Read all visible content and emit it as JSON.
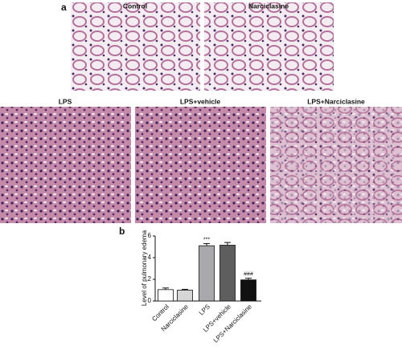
{
  "panel_a": {
    "label": "a",
    "images": [
      "Control",
      "Narciclasine",
      "LPS",
      "LPS+vehicle",
      "LPS+Narciclasine"
    ]
  },
  "panel_b_label": "b",
  "chart_data": {
    "type": "bar",
    "y_label": "Level of pulmonary edema",
    "categories": [
      "Control",
      "Narciclasine",
      "LPS",
      "LPS+vehicle",
      "LPS+Narciclasine"
    ],
    "values": [
      1.05,
      1.0,
      5.1,
      5.15,
      1.95
    ],
    "errors": [
      0.15,
      0.08,
      0.2,
      0.25,
      0.15
    ],
    "colors": [
      "#ffffff",
      "#d6d6d6",
      "#a8a8ad",
      "#5e5e5e",
      "#111111"
    ],
    "significance": [
      null,
      null,
      "***",
      null,
      "###"
    ],
    "ylim": [
      0,
      6
    ],
    "yticks": [
      0,
      2,
      4,
      6
    ]
  }
}
